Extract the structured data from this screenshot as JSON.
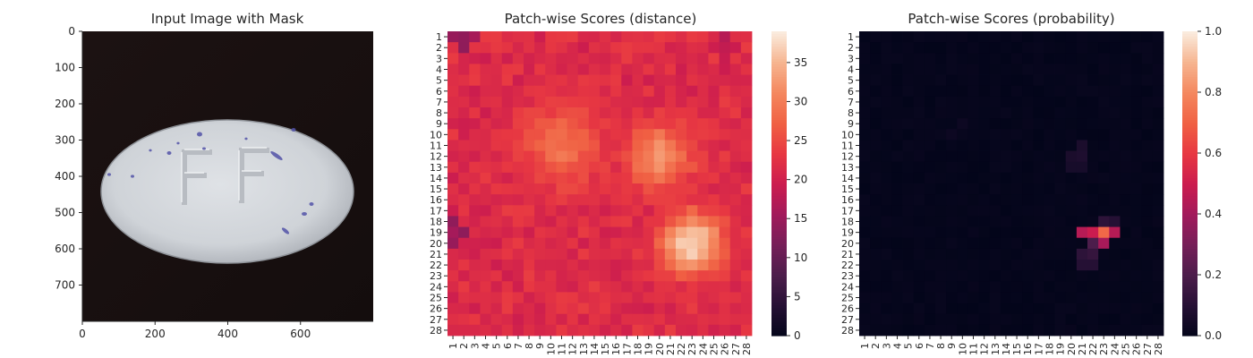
{
  "chart_data": [
    {
      "type": "image",
      "title": "Input Image with Mask",
      "xticks": [
        0,
        200,
        400,
        600
      ],
      "yticks": [
        0,
        100,
        200,
        300,
        400,
        500,
        600,
        700
      ],
      "xlim": [
        0,
        800
      ],
      "ylim": [
        800,
        0
      ],
      "image_description": "Photograph of a white oval tablet embossed with the letters FF on a dark background, with small blue speckles",
      "embossed_text": "FF",
      "colors": {
        "background": "#1c1212",
        "tablet": "#d4d7dc",
        "speckle": "#4a4aa0"
      }
    },
    {
      "type": "heatmap",
      "title": "Patch-wise Scores (distance)",
      "rows": [
        "1",
        "2",
        "3",
        "4",
        "5",
        "6",
        "7",
        "8",
        "9",
        "10",
        "11",
        "12",
        "13",
        "14",
        "15",
        "16",
        "17",
        "18",
        "19",
        "20",
        "21",
        "22",
        "23",
        "24",
        "25",
        "26",
        "27",
        "28"
      ],
      "cols": [
        "1",
        "2",
        "3",
        "4",
        "5",
        "6",
        "7",
        "8",
        "9",
        "10",
        "11",
        "12",
        "13",
        "14",
        "15",
        "16",
        "17",
        "18",
        "19",
        "20",
        "21",
        "22",
        "23",
        "24",
        "25",
        "26",
        "27",
        "28"
      ],
      "colorbar_ticks": [
        0,
        5,
        10,
        15,
        20,
        25,
        30,
        35
      ],
      "vmin": 0,
      "vmax": 39,
      "colormap": "rocket",
      "background_level": 21,
      "hotspots": [
        {
          "row": 11,
          "col": 11,
          "radius": 3.2,
          "peak": 29
        },
        {
          "row": 12,
          "col": 20,
          "radius": 2.6,
          "peak": 32
        },
        {
          "row": 20,
          "col": 23,
          "radius": 2.4,
          "peak": 38
        }
      ],
      "coldspots": [
        {
          "row": 1,
          "col": 2,
          "level": 14
        },
        {
          "row": 19,
          "col": 1,
          "level": 13
        },
        {
          "row": 2,
          "col": 26,
          "level": 17
        }
      ]
    },
    {
      "type": "heatmap",
      "title": "Patch-wise Scores (probability)",
      "rows": [
        "1",
        "2",
        "3",
        "4",
        "5",
        "6",
        "7",
        "8",
        "9",
        "10",
        "11",
        "12",
        "13",
        "14",
        "15",
        "16",
        "17",
        "18",
        "19",
        "20",
        "21",
        "22",
        "23",
        "24",
        "25",
        "26",
        "27",
        "28"
      ],
      "cols": [
        "1",
        "2",
        "3",
        "4",
        "5",
        "6",
        "7",
        "8",
        "9",
        "10",
        "11",
        "12",
        "13",
        "14",
        "15",
        "16",
        "17",
        "18",
        "19",
        "20",
        "21",
        "22",
        "23",
        "24",
        "25",
        "26",
        "27",
        "28"
      ],
      "colorbar_ticks": [
        "0.0",
        "0.2",
        "0.4",
        "0.6",
        "0.8",
        "1.0"
      ],
      "vmin": 0,
      "vmax": 1,
      "colormap": "rocket",
      "cells": [
        {
          "row": 19,
          "col": 21,
          "value": 0.45
        },
        {
          "row": 19,
          "col": 22,
          "value": 0.5
        },
        {
          "row": 19,
          "col": 23,
          "value": 0.72
        },
        {
          "row": 19,
          "col": 24,
          "value": 0.45
        },
        {
          "row": 18,
          "col": 23,
          "value": 0.12
        },
        {
          "row": 18,
          "col": 24,
          "value": 0.1
        },
        {
          "row": 20,
          "col": 22,
          "value": 0.2
        },
        {
          "row": 20,
          "col": 23,
          "value": 0.42
        },
        {
          "row": 21,
          "col": 21,
          "value": 0.12
        },
        {
          "row": 21,
          "col": 22,
          "value": 0.14
        },
        {
          "row": 22,
          "col": 21,
          "value": 0.1
        },
        {
          "row": 22,
          "col": 22,
          "value": 0.1
        },
        {
          "row": 11,
          "col": 21,
          "value": 0.07
        },
        {
          "row": 12,
          "col": 20,
          "value": 0.07
        },
        {
          "row": 12,
          "col": 21,
          "value": 0.08
        },
        {
          "row": 13,
          "col": 20,
          "value": 0.06
        },
        {
          "row": 13,
          "col": 21,
          "value": 0.06
        },
        {
          "row": 10,
          "col": 9,
          "value": 0.03
        },
        {
          "row": 9,
          "col": 10,
          "value": 0.03
        }
      ],
      "floor_value": 0.015
    }
  ]
}
